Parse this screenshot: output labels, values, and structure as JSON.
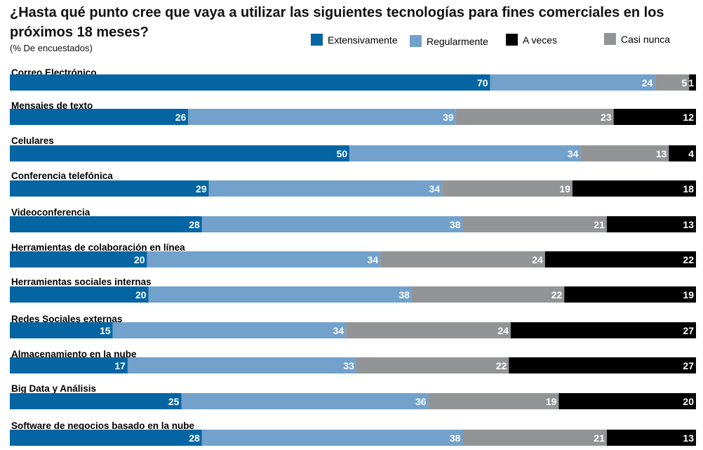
{
  "header": {
    "title": "¿Hasta qué punto cree que vaya a utilizar las siguientes tecnologías para fines comerciales en los próximos 18 meses?",
    "subtitle": "(% De encuestados)"
  },
  "colors": {
    "series": [
      "#0565a3",
      "#72a1cc",
      "#939496",
      "#000000"
    ],
    "value_label": "#ffffff"
  },
  "chart_data": {
    "type": "bar",
    "orientation": "horizontal",
    "stacked": true,
    "title": "¿Hasta qué punto cree que vaya a utilizar las siguientes tecnologías para fines comerciales en los próximos 18 meses?",
    "subtitle": "(% De encuestados)",
    "legend_position": "top-right",
    "legend": [
      "Extensivamente",
      "Regularmente",
      "A veces",
      "Casi nunca"
    ],
    "categories": [
      "Correo Electrónico",
      "Mensajes de texto",
      "Celulares",
      "Conferencia telefónica",
      "Videoconferencia",
      "Herramientas de colaboración en línea",
      "Herramientas sociales internas",
      "Redes Sociales externas",
      "Almacenamiento en la nube",
      "Big Data y Análisis",
      "Software de negocios basado en la nube"
    ],
    "series": [
      {
        "name": "Extensivamente",
        "values": [
          70,
          26,
          50,
          29,
          28,
          20,
          20,
          15,
          17,
          25,
          28
        ]
      },
      {
        "name": "Regularmente",
        "values": [
          24,
          39,
          34,
          34,
          38,
          34,
          38,
          34,
          33,
          36,
          38
        ]
      },
      {
        "name": "Casi nunca",
        "values": [
          5,
          23,
          13,
          19,
          21,
          24,
          22,
          24,
          22,
          19,
          21
        ]
      },
      {
        "name": "A veces",
        "values": [
          1,
          12,
          4,
          18,
          13,
          22,
          19,
          27,
          27,
          20,
          13
        ]
      }
    ]
  }
}
